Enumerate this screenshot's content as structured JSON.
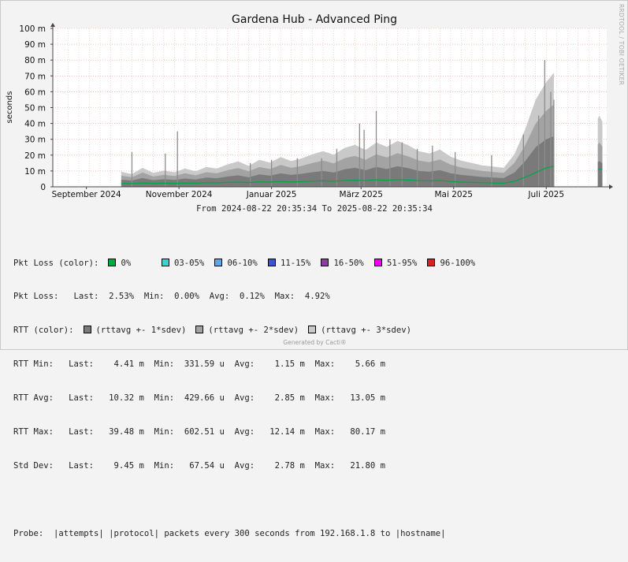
{
  "chart_data": {
    "type": "area",
    "title": "Gardena Hub - Advanced Ping",
    "ylabel": "seconds",
    "xlabel": "",
    "y_unit": "seconds",
    "ylim": [
      0,
      0.1
    ],
    "yticks": [
      "0",
      "10 m",
      "20 m",
      "30 m",
      "40 m",
      "50 m",
      "60 m",
      "70 m",
      "80 m",
      "90 m",
      "100 m"
    ],
    "x_range": [
      "2024-08-22 20:35:34",
      "2025-08-22 20:35:34"
    ],
    "x_tick_labels": [
      {
        "date": "2024-09-14",
        "label": "September 2024"
      },
      {
        "date": "2024-11-14",
        "label": "November 2024"
      },
      {
        "date": "2025-01-14",
        "label": "Januar 2025"
      },
      {
        "date": "2025-03-14",
        "label": "März 2025"
      },
      {
        "date": "2025-05-14",
        "label": "Mai 2025"
      },
      {
        "date": "2025-07-14",
        "label": "Juli 2025"
      }
    ],
    "grid": true,
    "subtitle": "From 2024-08-22 20:35:34 To 2025-08-22 20:35:34",
    "series": [
      {
        "name": "RTT avg",
        "color": "#00a844",
        "points": [
          [
            "2024-10-07",
            0.0022
          ],
          [
            "2024-10-14",
            0.0021
          ],
          [
            "2024-10-21",
            0.0024
          ],
          [
            "2024-10-28",
            0.0022
          ],
          [
            "2024-11-04",
            0.0023
          ],
          [
            "2024-11-11",
            0.0022
          ],
          [
            "2024-11-18",
            0.0024
          ],
          [
            "2024-11-25",
            0.0023
          ],
          [
            "2024-12-02",
            0.0026
          ],
          [
            "2024-12-09",
            0.0025
          ],
          [
            "2024-12-16",
            0.0028
          ],
          [
            "2024-12-23",
            0.003
          ],
          [
            "2024-12-30",
            0.0027
          ],
          [
            "2025-01-06",
            0.0032
          ],
          [
            "2025-01-13",
            0.003
          ],
          [
            "2025-01-20",
            0.0034
          ],
          [
            "2025-01-27",
            0.0031
          ],
          [
            "2025-02-03",
            0.0033
          ],
          [
            "2025-02-10",
            0.0036
          ],
          [
            "2025-02-17",
            0.0038
          ],
          [
            "2025-02-24",
            0.0035
          ],
          [
            "2025-03-03",
            0.004
          ],
          [
            "2025-03-10",
            0.0042
          ],
          [
            "2025-03-17",
            0.0039
          ],
          [
            "2025-03-24",
            0.0045
          ],
          [
            "2025-03-31",
            0.0041
          ],
          [
            "2025-04-07",
            0.0046
          ],
          [
            "2025-04-14",
            0.0043
          ],
          [
            "2025-04-21",
            0.0039
          ],
          [
            "2025-04-28",
            0.0037
          ],
          [
            "2025-05-05",
            0.004
          ],
          [
            "2025-05-12",
            0.0034
          ],
          [
            "2025-05-19",
            0.003
          ],
          [
            "2025-05-26",
            0.0028
          ],
          [
            "2025-06-02",
            0.0026
          ],
          [
            "2025-06-09",
            0.0024
          ],
          [
            "2025-06-16",
            0.0023
          ],
          [
            "2025-06-23",
            0.0035
          ],
          [
            "2025-06-30",
            0.006
          ],
          [
            "2025-07-07",
            0.009
          ],
          [
            "2025-07-14",
            0.012
          ],
          [
            "2025-07-19",
            0.013
          ]
        ]
      },
      {
        "name": "rttavg +- 1*sdev",
        "color": "#7a7a7a",
        "points": [
          [
            "2024-10-07",
            0.0045
          ],
          [
            "2024-10-14",
            0.004
          ],
          [
            "2024-10-21",
            0.0055
          ],
          [
            "2024-10-28",
            0.0042
          ],
          [
            "2024-11-04",
            0.0048
          ],
          [
            "2024-11-11",
            0.0044
          ],
          [
            "2024-11-18",
            0.0052
          ],
          [
            "2024-11-25",
            0.0046
          ],
          [
            "2024-12-02",
            0.0058
          ],
          [
            "2024-12-09",
            0.0054
          ],
          [
            "2024-12-16",
            0.0065
          ],
          [
            "2024-12-23",
            0.0072
          ],
          [
            "2024-12-30",
            0.006
          ],
          [
            "2025-01-06",
            0.0078
          ],
          [
            "2025-01-13",
            0.007
          ],
          [
            "2025-01-20",
            0.0085
          ],
          [
            "2025-01-27",
            0.0075
          ],
          [
            "2025-02-03",
            0.0082
          ],
          [
            "2025-02-10",
            0.0092
          ],
          [
            "2025-02-17",
            0.01
          ],
          [
            "2025-02-24",
            0.009
          ],
          [
            "2025-03-03",
            0.011
          ],
          [
            "2025-03-10",
            0.012
          ],
          [
            "2025-03-17",
            0.0105
          ],
          [
            "2025-03-24",
            0.0125
          ],
          [
            "2025-03-31",
            0.0112
          ],
          [
            "2025-04-07",
            0.013
          ],
          [
            "2025-04-14",
            0.0118
          ],
          [
            "2025-04-21",
            0.01
          ],
          [
            "2025-04-28",
            0.0095
          ],
          [
            "2025-05-05",
            0.0105
          ],
          [
            "2025-05-12",
            0.0085
          ],
          [
            "2025-05-19",
            0.0075
          ],
          [
            "2025-05-26",
            0.0068
          ],
          [
            "2025-06-02",
            0.0062
          ],
          [
            "2025-06-09",
            0.0058
          ],
          [
            "2025-06-16",
            0.0055
          ],
          [
            "2025-06-23",
            0.009
          ],
          [
            "2025-06-30",
            0.016
          ],
          [
            "2025-07-07",
            0.025
          ],
          [
            "2025-07-14",
            0.03
          ],
          [
            "2025-07-19",
            0.032
          ]
        ]
      },
      {
        "name": "rttavg +- 2*sdev",
        "color": "#a3a3a3",
        "points": [
          [
            "2024-10-07",
            0.007
          ],
          [
            "2024-10-14",
            0.006
          ],
          [
            "2024-10-21",
            0.009
          ],
          [
            "2024-10-28",
            0.0065
          ],
          [
            "2024-11-04",
            0.0075
          ],
          [
            "2024-11-11",
            0.0068
          ],
          [
            "2024-11-18",
            0.0085
          ],
          [
            "2024-11-25",
            0.0072
          ],
          [
            "2024-12-02",
            0.0092
          ],
          [
            "2024-12-09",
            0.0085
          ],
          [
            "2024-12-16",
            0.0105
          ],
          [
            "2024-12-23",
            0.0118
          ],
          [
            "2024-12-30",
            0.0098
          ],
          [
            "2025-01-06",
            0.0125
          ],
          [
            "2025-01-13",
            0.0112
          ],
          [
            "2025-01-20",
            0.0138
          ],
          [
            "2025-01-27",
            0.012
          ],
          [
            "2025-02-03",
            0.0132
          ],
          [
            "2025-02-10",
            0.015
          ],
          [
            "2025-02-17",
            0.0165
          ],
          [
            "2025-02-24",
            0.0148
          ],
          [
            "2025-03-03",
            0.018
          ],
          [
            "2025-03-10",
            0.0195
          ],
          [
            "2025-03-17",
            0.017
          ],
          [
            "2025-03-24",
            0.0205
          ],
          [
            "2025-03-31",
            0.0185
          ],
          [
            "2025-04-07",
            0.0212
          ],
          [
            "2025-04-14",
            0.0192
          ],
          [
            "2025-04-21",
            0.0165
          ],
          [
            "2025-04-28",
            0.0155
          ],
          [
            "2025-05-05",
            0.0172
          ],
          [
            "2025-05-12",
            0.014
          ],
          [
            "2025-05-19",
            0.0122
          ],
          [
            "2025-05-26",
            0.011
          ],
          [
            "2025-06-02",
            0.01
          ],
          [
            "2025-06-09",
            0.0094
          ],
          [
            "2025-06-16",
            0.0088
          ],
          [
            "2025-06-23",
            0.015
          ],
          [
            "2025-06-30",
            0.026
          ],
          [
            "2025-07-07",
            0.04
          ],
          [
            "2025-07-14",
            0.048
          ],
          [
            "2025-07-19",
            0.052
          ]
        ]
      },
      {
        "name": "rttavg +- 3*sdev",
        "color": "#c9c9c9",
        "points": [
          [
            "2024-10-07",
            0.0095
          ],
          [
            "2024-10-14",
            0.008
          ],
          [
            "2024-10-21",
            0.012
          ],
          [
            "2024-10-28",
            0.0088
          ],
          [
            "2024-11-04",
            0.0102
          ],
          [
            "2024-11-11",
            0.0092
          ],
          [
            "2024-11-18",
            0.0115
          ],
          [
            "2024-11-25",
            0.0098
          ],
          [
            "2024-12-02",
            0.0125
          ],
          [
            "2024-12-09",
            0.0115
          ],
          [
            "2024-12-16",
            0.0142
          ],
          [
            "2024-12-23",
            0.016
          ],
          [
            "2024-12-30",
            0.0132
          ],
          [
            "2025-01-06",
            0.017
          ],
          [
            "2025-01-13",
            0.0152
          ],
          [
            "2025-01-20",
            0.0188
          ],
          [
            "2025-01-27",
            0.0162
          ],
          [
            "2025-02-03",
            0.018
          ],
          [
            "2025-02-10",
            0.0205
          ],
          [
            "2025-02-17",
            0.0225
          ],
          [
            "2025-02-24",
            0.0202
          ],
          [
            "2025-03-03",
            0.0245
          ],
          [
            "2025-03-10",
            0.0265
          ],
          [
            "2025-03-17",
            0.0232
          ],
          [
            "2025-03-24",
            0.028
          ],
          [
            "2025-03-31",
            0.0252
          ],
          [
            "2025-04-07",
            0.029
          ],
          [
            "2025-04-14",
            0.0262
          ],
          [
            "2025-04-21",
            0.0225
          ],
          [
            "2025-04-28",
            0.021
          ],
          [
            "2025-05-05",
            0.0235
          ],
          [
            "2025-05-12",
            0.019
          ],
          [
            "2025-05-19",
            0.0165
          ],
          [
            "2025-05-26",
            0.015
          ],
          [
            "2025-06-02",
            0.0135
          ],
          [
            "2025-06-09",
            0.0128
          ],
          [
            "2025-06-16",
            0.012
          ],
          [
            "2025-06-23",
            0.0205
          ],
          [
            "2025-06-30",
            0.036
          ],
          [
            "2025-07-07",
            0.055
          ],
          [
            "2025-07-14",
            0.066
          ],
          [
            "2025-07-19",
            0.072
          ]
        ]
      }
    ],
    "spikes": [
      [
        "2024-10-14",
        0.022
      ],
      [
        "2024-11-05",
        0.021
      ],
      [
        "2024-11-13",
        0.035
      ],
      [
        "2024-12-31",
        0.015
      ],
      [
        "2025-01-14",
        0.017
      ],
      [
        "2025-01-31",
        0.018
      ],
      [
        "2025-02-16",
        0.018
      ],
      [
        "2025-02-26",
        0.024
      ],
      [
        "2025-03-13",
        0.04
      ],
      [
        "2025-03-16",
        0.036
      ],
      [
        "2025-03-24",
        0.048
      ],
      [
        "2025-04-02",
        0.03
      ],
      [
        "2025-04-10",
        0.028
      ],
      [
        "2025-04-20",
        0.024
      ],
      [
        "2025-04-30",
        0.026
      ],
      [
        "2025-05-15",
        0.022
      ],
      [
        "2025-06-08",
        0.02
      ],
      [
        "2025-06-29",
        0.033
      ],
      [
        "2025-07-09",
        0.045
      ],
      [
        "2025-07-13",
        0.08
      ],
      [
        "2025-07-17",
        0.06
      ],
      [
        "2025-07-19",
        0.055
      ]
    ],
    "late_segment": [
      [
        "2025-08-17",
        0.043
      ],
      [
        "2025-08-18",
        0.045
      ],
      [
        "2025-08-20",
        0.041
      ]
    ]
  },
  "legend": {
    "pkt_loss_color_label": "Pkt Loss (color):",
    "pkt_loss_items": [
      {
        "label": "0%",
        "color": "#00a840"
      },
      {
        "label": "03-05%",
        "color": "#41d0d0"
      },
      {
        "label": "06-10%",
        "color": "#62a6e6"
      },
      {
        "label": "11-15%",
        "color": "#3a54d0"
      },
      {
        "label": "16-50%",
        "color": "#8a3fa0"
      },
      {
        "label": "51-95%",
        "color": "#f000f0"
      },
      {
        "label": "96-100%",
        "color": "#e02020"
      }
    ],
    "pkt_loss_line": "Pkt Loss:   Last:  2.53%  Min:  0.00%  Avg:  0.12%  Max:  4.92%",
    "rtt_color_label": "RTT (color):",
    "rtt_items": [
      {
        "label": "(rttavg +- 1*sdev)",
        "color": "#7a7a7a"
      },
      {
        "label": "(rttavg +- 2*sdev)",
        "color": "#a3a3a3"
      },
      {
        "label": "(rttavg +- 3*sdev)",
        "color": "#c9c9c9"
      }
    ],
    "rtt_min": "RTT Min:   Last:    4.41 m  Min:  331.59 u  Avg:    1.15 m  Max:    5.66 m",
    "rtt_avg": "RTT Avg:   Last:   10.32 m  Min:  429.66 u  Avg:    2.85 m  Max:   13.05 m",
    "rtt_max": "RTT Max:   Last:   39.48 m  Min:  602.51 u  Avg:   12.14 m  Max:   80.17 m",
    "std_dev": "Std Dev:   Last:    9.45 m  Min:   67.54 u  Avg:    2.78 m  Max:   21.80 m",
    "probe": "Probe:  |attempts| |protocol| packets every 300 seconds from 192.168.1.8 to |hostname|"
  },
  "footer": "Generated by Cacti®",
  "side_watermark": "RRDTOOL / TOBI OETIKER"
}
